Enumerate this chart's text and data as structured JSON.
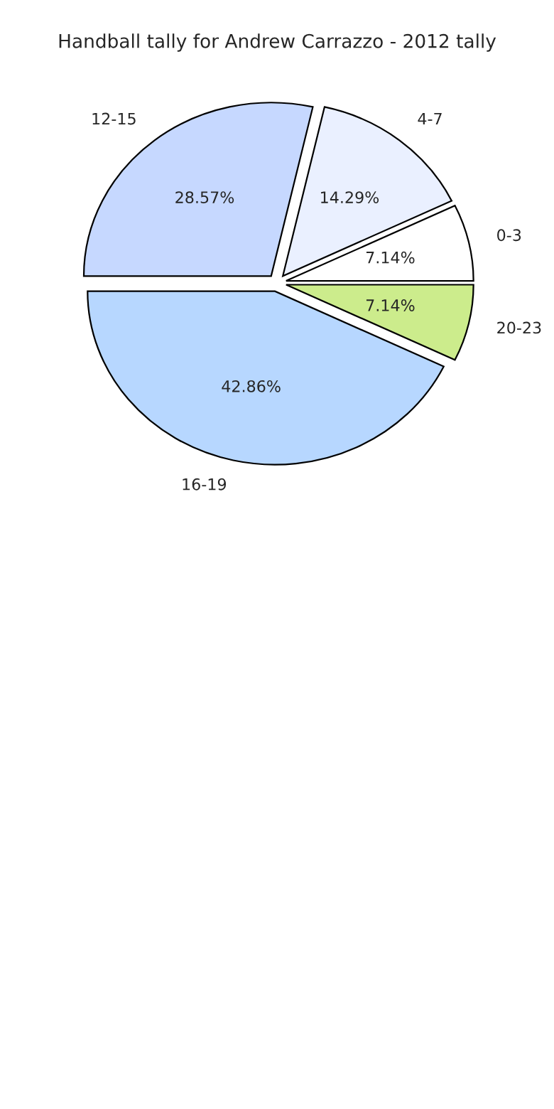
{
  "chart_data": {
    "type": "pie",
    "title": "Handball tally for Andrew Carrazzo - 2012 tally",
    "categories": [
      "0-3",
      "4-7",
      "12-15",
      "16-19",
      "20-23"
    ],
    "values": [
      7.14,
      14.29,
      28.57,
      42.86,
      7.14
    ],
    "value_labels": [
      "7.14%",
      "14.29%",
      "28.57%",
      "42.86%",
      "7.14%"
    ],
    "colors": [
      "#ffffff",
      "#eaf0ff",
      "#c6d8ff",
      "#b7d7ff",
      "#ccec8c"
    ]
  }
}
